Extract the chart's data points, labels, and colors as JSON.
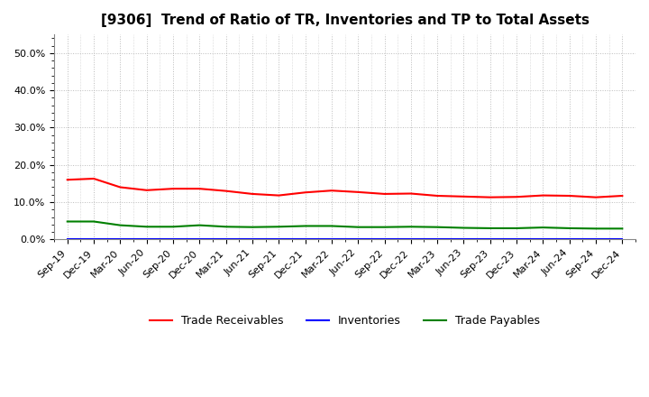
{
  "title": "[9306]  Trend of Ratio of TR, Inventories and TP to Total Assets",
  "labels": [
    "Sep-19",
    "Dec-19",
    "Mar-20",
    "Jun-20",
    "Sep-20",
    "Dec-20",
    "Mar-21",
    "Jun-21",
    "Sep-21",
    "Dec-21",
    "Mar-22",
    "Jun-22",
    "Sep-22",
    "Dec-22",
    "Mar-23",
    "Jun-23",
    "Sep-23",
    "Dec-23",
    "Mar-24",
    "Jun-24",
    "Sep-24",
    "Dec-24"
  ],
  "trade_receivables": [
    0.16,
    0.163,
    0.14,
    0.132,
    0.136,
    0.136,
    0.13,
    0.122,
    0.118,
    0.126,
    0.131,
    0.127,
    0.122,
    0.123,
    0.117,
    0.115,
    0.113,
    0.114,
    0.118,
    0.117,
    0.113,
    0.117
  ],
  "inventories": [
    0.002,
    0.002,
    0.002,
    0.002,
    0.002,
    0.002,
    0.002,
    0.002,
    0.002,
    0.002,
    0.002,
    0.002,
    0.002,
    0.002,
    0.002,
    0.002,
    0.002,
    0.002,
    0.002,
    0.002,
    0.002,
    0.002
  ],
  "trade_payables": [
    0.048,
    0.048,
    0.038,
    0.034,
    0.034,
    0.038,
    0.034,
    0.033,
    0.034,
    0.036,
    0.036,
    0.033,
    0.033,
    0.034,
    0.033,
    0.031,
    0.03,
    0.03,
    0.032,
    0.03,
    0.029,
    0.029
  ],
  "tr_color": "#ff0000",
  "inv_color": "#0000ff",
  "tp_color": "#008000",
  "ylim_min": 0.0,
  "ylim_max": 0.55,
  "yticks": [
    0.0,
    0.1,
    0.2,
    0.3,
    0.4,
    0.5
  ],
  "background_color": "#ffffff",
  "plot_bg_color": "#ffffff",
  "grid_color": "#bbbbbb",
  "title_fontsize": 11,
  "tick_fontsize": 8,
  "legend_fontsize": 9,
  "legend_labels": [
    "Trade Receivables",
    "Inventories",
    "Trade Payables"
  ],
  "linewidth": 1.5
}
